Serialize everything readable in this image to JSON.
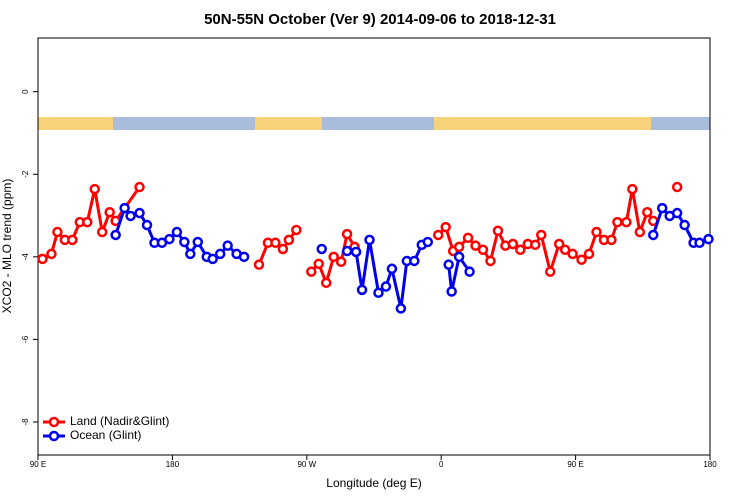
{
  "chart_data": {
    "type": "line",
    "title": "50N-55N October (Ver 9)   2014-09-06 to 2018-12-31",
    "x_label": "Longitude (deg E)",
    "y_label": "XCO2 - MLO trend (ppm)",
    "xlim": [
      -270,
      180
    ],
    "ylim": [
      -8.8,
      1.3
    ],
    "xticks": [
      {
        "value": -270,
        "label": "90 E"
      },
      {
        "value": -180,
        "label": "180"
      },
      {
        "value": -90,
        "label": "90 W"
      },
      0,
      {
        "value": 90,
        "label": "90 E"
      },
      180
    ],
    "yticks": [
      0,
      -2,
      -4,
      -6,
      -8
    ],
    "legend": "bottom-left",
    "series": [
      {
        "name": "Land (Nadir&Glint)",
        "color": "#ff0000",
        "x": [
          -267,
          -261,
          -257,
          -252,
          -247,
          -242,
          -237,
          -232,
          -227,
          -222,
          -218,
          -202,
          null,
          -122,
          -116,
          -111,
          -106,
          -102,
          -97,
          null,
          -87,
          -82,
          -77,
          -72,
          -67,
          -63,
          -58,
          null,
          -2,
          3,
          8,
          12,
          18,
          23,
          28,
          33,
          38,
          43,
          48,
          53,
          58,
          63,
          67,
          73,
          79,
          83,
          88,
          94,
          99,
          104,
          109,
          114,
          118,
          124,
          128,
          133,
          138,
          142,
          null,
          158
        ],
        "values": [
          -4.05,
          -3.93,
          -3.4,
          -3.59,
          -3.59,
          -3.16,
          -3.16,
          -2.36,
          -3.4,
          -2.92,
          -3.13,
          -2.31,
          null,
          -4.19,
          -3.66,
          -3.66,
          -3.81,
          -3.59,
          -3.35,
          null,
          -4.36,
          -4.17,
          -4.63,
          -4.0,
          -4.12,
          -3.45,
          -3.76,
          null,
          -3.47,
          -3.28,
          -3.86,
          -3.76,
          -3.54,
          -3.73,
          -3.83,
          -4.1,
          -3.37,
          -3.73,
          -3.69,
          -3.83,
          -3.69,
          -3.71,
          -3.47,
          -4.36,
          -3.69,
          -3.83,
          -3.93,
          -4.07,
          -3.93,
          -3.4,
          -3.59,
          -3.59,
          -3.16,
          -3.16,
          -2.36,
          -3.4,
          -2.92,
          -3.13,
          null,
          -2.31
        ]
      },
      {
        "name": "Ocean (Glint)",
        "color": "#0000ee",
        "x": [
          -218,
          -212,
          -208,
          -202,
          -197,
          -192,
          -187,
          -182,
          -177,
          -172,
          -168,
          -163,
          -157,
          -153,
          -148,
          -143,
          -137,
          -132,
          null,
          -80,
          null,
          -63,
          -57,
          -53,
          -48,
          -42,
          -37,
          -33,
          -27,
          -23,
          -18,
          -13,
          -9,
          null,
          5,
          7,
          12,
          19,
          null,
          142,
          148,
          153,
          158,
          163,
          169,
          173,
          179
        ],
        "values": [
          -3.47,
          -2.82,
          -3.01,
          -2.94,
          -3.23,
          -3.66,
          -3.66,
          -3.57,
          -3.4,
          -3.64,
          -3.93,
          -3.64,
          -4.0,
          -4.05,
          -3.93,
          -3.73,
          -3.93,
          -4.0,
          null,
          -3.81,
          null,
          -3.86,
          -3.88,
          -4.8,
          -3.59,
          -4.87,
          -4.72,
          -4.29,
          -5.25,
          -4.1,
          -4.1,
          -3.71,
          -3.64,
          null,
          -4.19,
          -4.84,
          -4.0,
          -4.36,
          null,
          -3.47,
          -2.82,
          -3.01,
          -2.94,
          -3.23,
          -3.66,
          -3.66,
          -3.57
        ]
      }
    ]
  }
}
